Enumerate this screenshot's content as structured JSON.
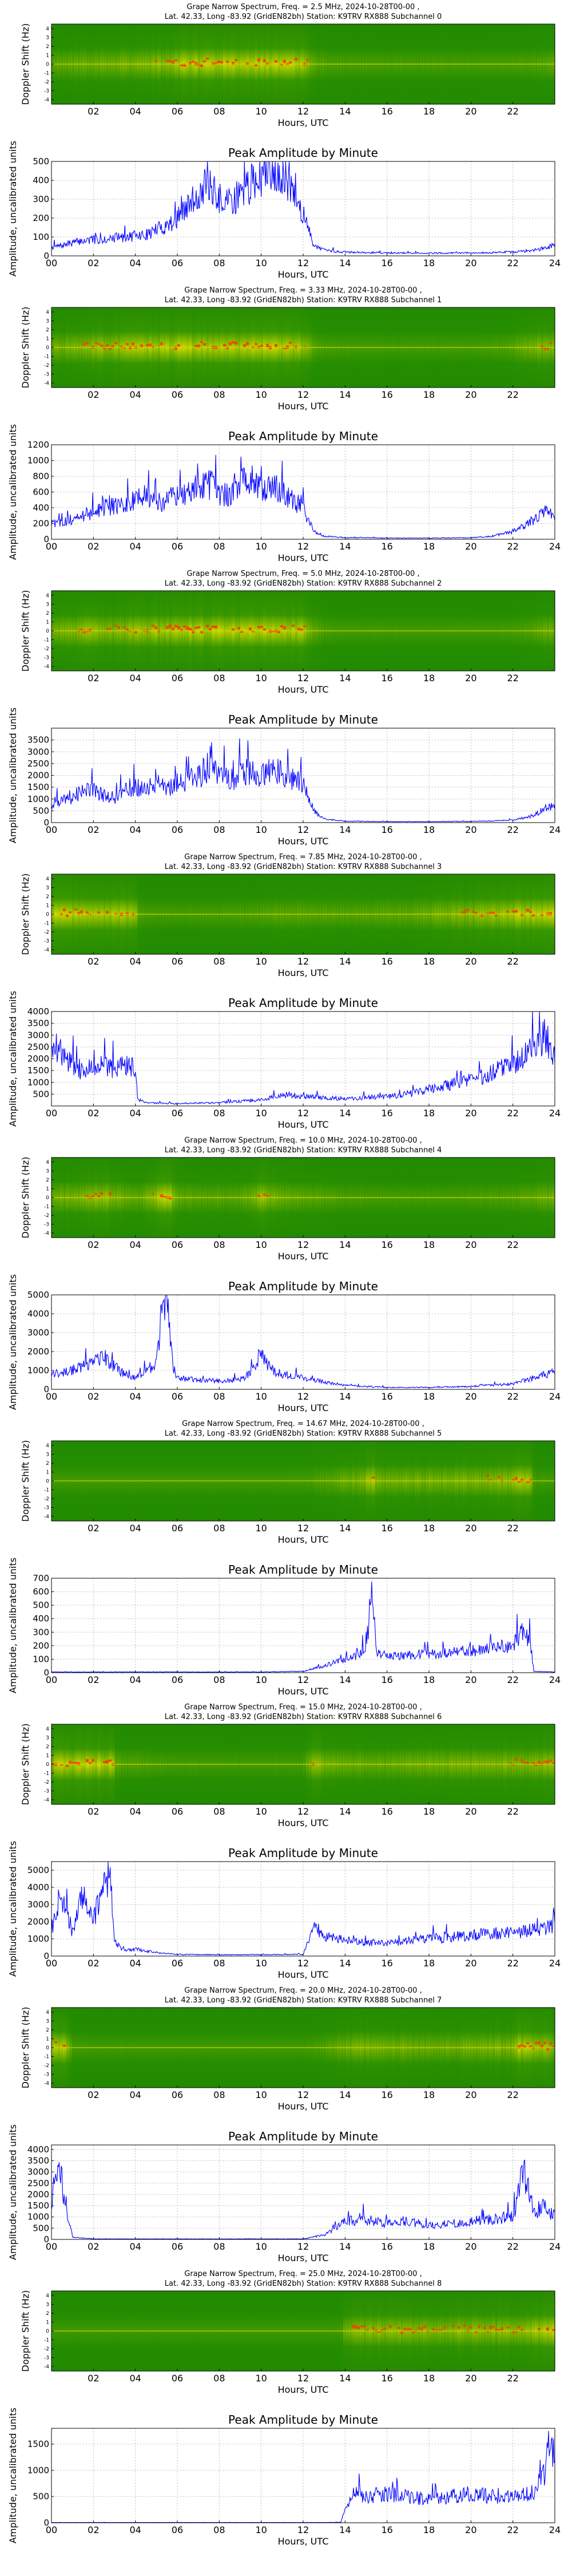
{
  "figure": {
    "spectrogram_xlabel": "Hours, UTC",
    "spectrogram_ylabel": "Doppler Shift (Hz)",
    "amplitude_title": "Peak Amplitude by Minute",
    "amplitude_xlabel": "Hours, UTC",
    "amplitude_ylabel": "Amplitude, uncalibrated units",
    "spectrogram_xticks": [
      "02",
      "04",
      "06",
      "08",
      "10",
      "12",
      "14",
      "16",
      "18",
      "20",
      "22"
    ],
    "amplitude_xticks": [
      "00",
      "02",
      "04",
      "06",
      "08",
      "10",
      "12",
      "14",
      "16",
      "18",
      "20",
      "22",
      "24"
    ],
    "doppler_ticks": [
      "4",
      "3",
      "2",
      "1",
      "0",
      "-1",
      "-2",
      "-3",
      "-4"
    ],
    "colors": {
      "line": "#0000ff",
      "spectrogram_background": "#1f8a00",
      "spectrogram_mid": "#c6d600",
      "spectrogram_peak": "#ff3300",
      "grid": "#bdbdbd"
    }
  },
  "channels": [
    {
      "title_line1": "Grape Narrow Spectrum, Freq. = 2.5 MHz, 2024-10-28T00-00 ,",
      "title_line2": "Lat. 42.33, Long -83.92 (GridEN82bh) Station: K9TRV RX888 Subchannel 0",
      "yticks": [
        0,
        100,
        200,
        300,
        400,
        500
      ],
      "ymax": 500
    },
    {
      "title_line1": "Grape Narrow Spectrum, Freq. = 3.33 MHz, 2024-10-28T00-00 ,",
      "title_line2": "Lat. 42.33, Long -83.92 (GridEN82bh) Station: K9TRV RX888 Subchannel 1",
      "yticks": [
        0,
        200,
        400,
        600,
        800,
        1000,
        1200
      ],
      "ymax": 1200
    },
    {
      "title_line1": "Grape Narrow Spectrum, Freq. = 5.0 MHz, 2024-10-28T00-00 ,",
      "title_line2": "Lat. 42.33, Long -83.92 (GridEN82bh) Station: K9TRV RX888 Subchannel 2",
      "yticks": [
        0,
        500,
        1000,
        1500,
        2000,
        2500,
        3000,
        3500
      ],
      "ymax": 4000
    },
    {
      "title_line1": "Grape Narrow Spectrum, Freq. = 7.85 MHz, 2024-10-28T00-00 ,",
      "title_line2": "Lat. 42.33, Long -83.92 (GridEN82bh) Station: K9TRV RX888 Subchannel 3",
      "yticks": [
        500,
        1000,
        1500,
        2000,
        2500,
        3000,
        3500,
        4000
      ],
      "ymax": 4000
    },
    {
      "title_line1": "Grape Narrow Spectrum, Freq. = 10.0 MHz, 2024-10-28T00-00 ,",
      "title_line2": "Lat. 42.33, Long -83.92 (GridEN82bh) Station: K9TRV RX888 Subchannel 4",
      "yticks": [
        0,
        1000,
        2000,
        3000,
        4000,
        5000
      ],
      "ymax": 5000
    },
    {
      "title_line1": "Grape Narrow Spectrum, Freq. = 14.67 MHz, 2024-10-28T00-00 ,",
      "title_line2": "Lat. 42.33, Long -83.92 (GridEN82bh) Station: K9TRV RX888 Subchannel 5",
      "yticks": [
        0,
        100,
        200,
        300,
        400,
        500,
        600,
        700
      ],
      "ymax": 700
    },
    {
      "title_line1": "Grape Narrow Spectrum, Freq. = 15.0 MHz, 2024-10-28T00-00 ,",
      "title_line2": "Lat. 42.33, Long -83.92 (GridEN82bh) Station: K9TRV RX888 Subchannel 6",
      "yticks": [
        0,
        1000,
        2000,
        3000,
        4000,
        5000
      ],
      "ymax": 5500
    },
    {
      "title_line1": "Grape Narrow Spectrum, Freq. = 20.0 MHz, 2024-10-28T00-00 ,",
      "title_line2": "Lat. 42.33, Long -83.92 (GridEN82bh) Station: K9TRV RX888 Subchannel 7",
      "yticks": [
        0,
        500,
        1000,
        1500,
        2000,
        2500,
        3000,
        3500,
        4000
      ],
      "ymax": 4200
    },
    {
      "title_line1": "Grape Narrow Spectrum, Freq. = 25.0 MHz, 2024-10-28T00-00 ,",
      "title_line2": "Lat. 42.33, Long -83.92 (GridEN82bh) Station: K9TRV RX888 Subchannel 8",
      "yticks": [
        0,
        500,
        1000,
        1500
      ],
      "ymax": 1800
    }
  ],
  "chart_data": [
    {
      "type": "line",
      "title": "Peak Amplitude by Minute",
      "xlabel": "Hours, UTC",
      "ylabel": "Amplitude, uncalibrated units",
      "xlim": [
        0,
        24
      ],
      "ylim": [
        0,
        500
      ],
      "grid": true,
      "x": [
        0,
        0.5,
        1,
        1.5,
        2,
        2.5,
        3,
        3.5,
        4,
        4.5,
        5,
        5.5,
        6,
        6.5,
        7,
        7.5,
        8,
        8.5,
        9,
        9.5,
        10,
        10.5,
        11,
        11.5,
        12,
        12.5,
        13,
        14,
        16,
        18,
        20,
        22,
        23,
        23.5,
        24
      ],
      "y": [
        45,
        55,
        70,
        80,
        85,
        90,
        95,
        100,
        105,
        110,
        140,
        160,
        200,
        260,
        330,
        380,
        300,
        280,
        330,
        380,
        430,
        480,
        440,
        350,
        220,
        60,
        30,
        20,
        15,
        15,
        15,
        20,
        30,
        40,
        60
      ]
    },
    {
      "type": "line",
      "title": "Peak Amplitude by Minute",
      "xlabel": "Hours, UTC",
      "ylabel": "Amplitude, uncalibrated units",
      "xlim": [
        0,
        24
      ],
      "ylim": [
        0,
        1200
      ],
      "grid": true,
      "x": [
        0,
        0.5,
        1,
        1.5,
        2,
        2.5,
        3,
        3.5,
        4,
        4.5,
        5,
        5.5,
        6,
        6.5,
        7,
        7.5,
        8,
        8.5,
        9,
        9.5,
        10,
        10.5,
        11,
        11.5,
        12,
        12.5,
        13,
        14,
        16,
        18,
        20,
        21,
        22,
        23,
        23.5,
        24
      ],
      "y": [
        200,
        220,
        260,
        300,
        350,
        400,
        420,
        450,
        500,
        550,
        450,
        500,
        550,
        600,
        650,
        700,
        600,
        550,
        700,
        750,
        650,
        700,
        600,
        500,
        400,
        100,
        40,
        20,
        15,
        15,
        20,
        40,
        100,
        250,
        350,
        300
      ]
    },
    {
      "type": "line",
      "title": "Peak Amplitude by Minute",
      "xlabel": "Hours, UTC",
      "ylabel": "Amplitude, uncalibrated units",
      "xlim": [
        0,
        24
      ],
      "ylim": [
        0,
        4000
      ],
      "grid": true,
      "x": [
        0,
        0.5,
        1,
        1.5,
        2,
        2.5,
        3,
        3.5,
        4,
        4.5,
        5,
        5.5,
        6,
        6.5,
        7,
        7.5,
        8,
        8.5,
        9,
        9.5,
        10,
        10.5,
        11,
        11.5,
        12,
        12.5,
        13,
        14,
        16,
        18,
        20,
        22,
        23,
        23.5,
        24
      ],
      "y": [
        800,
        900,
        1100,
        1300,
        1400,
        1200,
        1000,
        1300,
        1500,
        1400,
        1600,
        1500,
        1700,
        1800,
        1900,
        2400,
        2000,
        1800,
        2000,
        2200,
        1900,
        2300,
        2100,
        1900,
        1700,
        500,
        150,
        60,
        40,
        40,
        50,
        100,
        300,
        600,
        700
      ]
    },
    {
      "type": "line",
      "title": "Peak Amplitude by Minute",
      "xlabel": "Hours, UTC",
      "ylabel": "Amplitude, uncalibrated units",
      "xlim": [
        0,
        24
      ],
      "ylim": [
        0,
        4000
      ],
      "grid": true,
      "x": [
        0,
        0.5,
        1,
        1.5,
        2,
        2.5,
        3,
        3.5,
        4,
        4.1,
        4.5,
        5,
        6,
        7,
        8,
        9,
        10,
        11,
        12,
        13,
        14,
        15,
        16,
        17,
        18,
        19,
        20,
        21,
        22,
        23,
        23.5,
        24
      ],
      "y": [
        2900,
        2200,
        1700,
        1500,
        1600,
        1700,
        1600,
        1650,
        1700,
        300,
        150,
        120,
        100,
        120,
        150,
        200,
        250,
        500,
        400,
        350,
        300,
        350,
        400,
        500,
        700,
        900,
        1100,
        1400,
        1800,
        2400,
        3000,
        2000
      ]
    },
    {
      "type": "line",
      "title": "Peak Amplitude by Minute",
      "xlabel": "Hours, UTC",
      "ylabel": "Amplitude, uncalibrated units",
      "xlim": [
        0,
        24
      ],
      "ylim": [
        0,
        5000
      ],
      "grid": true,
      "x": [
        0,
        0.5,
        1,
        1.5,
        2,
        2.5,
        3,
        3.5,
        4,
        4.5,
        5,
        5.2,
        5.5,
        5.8,
        6,
        7,
        8,
        9,
        9.5,
        10,
        10.5,
        11,
        12,
        13,
        14,
        16,
        18,
        20,
        22,
        23,
        24
      ],
      "y": [
        800,
        900,
        1000,
        1200,
        1500,
        1800,
        1200,
        800,
        600,
        900,
        1500,
        3500,
        4500,
        1200,
        600,
        500,
        450,
        500,
        900,
        1800,
        1000,
        800,
        600,
        400,
        200,
        100,
        100,
        150,
        300,
        600,
        900
      ]
    },
    {
      "type": "line",
      "title": "Peak Amplitude by Minute",
      "xlabel": "Hours, UTC",
      "ylabel": "Amplitude, uncalibrated units",
      "xlim": [
        0,
        24
      ],
      "ylim": [
        0,
        700
      ],
      "grid": true,
      "x": [
        0,
        2,
        4,
        6,
        8,
        10,
        12,
        13,
        13.5,
        14,
        14.5,
        15,
        15.3,
        15.5,
        16,
        17,
        18,
        19,
        20,
        21,
        22,
        22.5,
        22.8,
        23,
        24
      ],
      "y": [
        5,
        5,
        5,
        5,
        5,
        5,
        10,
        50,
        80,
        100,
        120,
        180,
        650,
        150,
        120,
        130,
        140,
        150,
        160,
        180,
        200,
        320,
        250,
        10,
        5
      ]
    },
    {
      "type": "line",
      "title": "Peak Amplitude by Minute",
      "xlabel": "Hours, UTC",
      "ylabel": "Amplitude, uncalibrated units",
      "xlim": [
        0,
        24
      ],
      "ylim": [
        0,
        5500
      ],
      "grid": true,
      "x": [
        0,
        0.3,
        0.6,
        1,
        1.5,
        2,
        2.5,
        2.8,
        3,
        3.5,
        4,
        5,
        6,
        8,
        10,
        12,
        12.5,
        13,
        14,
        15,
        16,
        17,
        18,
        19,
        20,
        21,
        22,
        23,
        24
      ],
      "y": [
        1500,
        3200,
        2800,
        1500,
        3800,
        2000,
        4200,
        5000,
        800,
        300,
        400,
        200,
        100,
        80,
        80,
        100,
        1800,
        1200,
        900,
        800,
        700,
        900,
        1000,
        1100,
        1200,
        1300,
        1400,
        1500,
        1700
      ]
    },
    {
      "type": "line",
      "title": "Peak Amplitude by Minute",
      "xlabel": "Hours, UTC",
      "ylabel": "Amplitude, uncalibrated units",
      "xlim": [
        0,
        24
      ],
      "ylim": [
        0,
        4200
      ],
      "grid": true,
      "x": [
        0,
        0.3,
        0.5,
        1,
        2,
        4,
        6,
        8,
        10,
        12,
        13,
        13.5,
        14,
        15,
        16,
        17,
        18,
        19,
        20,
        21,
        22,
        22.5,
        23,
        23.5,
        24
      ],
      "y": [
        1500,
        3800,
        2500,
        100,
        20,
        20,
        20,
        20,
        20,
        20,
        200,
        500,
        800,
        900,
        700,
        800,
        600,
        700,
        800,
        900,
        1000,
        3000,
        1200,
        1500,
        1000
      ]
    },
    {
      "type": "line",
      "title": "Peak Amplitude by Minute",
      "xlabel": "Hours, UTC",
      "ylabel": "Amplitude, uncalibrated units",
      "xlim": [
        0,
        24
      ],
      "ylim": [
        0,
        1800
      ],
      "grid": true,
      "x": [
        0,
        2,
        4,
        6,
        8,
        10,
        12,
        13,
        13.8,
        14,
        14.5,
        15,
        16,
        17,
        18,
        19,
        20,
        21,
        22,
        23,
        23.5,
        23.8,
        24
      ],
      "y": [
        5,
        5,
        5,
        5,
        5,
        5,
        5,
        5,
        10,
        300,
        600,
        500,
        550,
        500,
        450,
        500,
        550,
        500,
        500,
        600,
        900,
        1700,
        1200
      ]
    }
  ]
}
